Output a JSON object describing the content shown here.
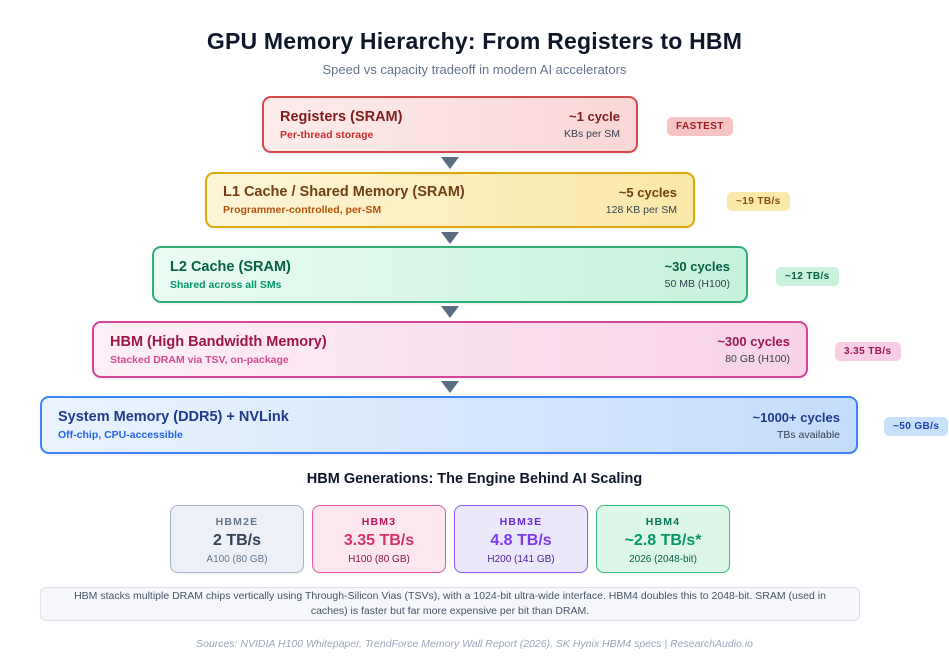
{
  "page": {
    "title": "GPU Memory Hierarchy: From Registers to HBM",
    "subtitle": "Speed vs capacity tradeoff in modern AI accelerators"
  },
  "hierarchy": {
    "levels": [
      {
        "name": "Registers (SRAM)",
        "description": "Per-thread storage",
        "latency": "~1 cycle",
        "capacity": "KBs per SM",
        "badge": "FASTEST",
        "accent": "#d64949"
      },
      {
        "name": "L1 Cache / Shared Memory (SRAM)",
        "description": "Programmer-controlled, per-SM",
        "latency": "~5 cycles",
        "capacity": "128 KB per SM",
        "badge": "~19 TB/s",
        "accent": "#dfa909"
      },
      {
        "name": "L2 Cache (SRAM)",
        "description": "Shared across all SMs",
        "latency": "~30 cycles",
        "capacity": "50 MB (H100)",
        "badge": "~12 TB/s",
        "accent": "#2fae76"
      },
      {
        "name": "HBM (High Bandwidth Memory)",
        "description": "Stacked DRAM via TSV, on-package",
        "latency": "~300 cycles",
        "capacity": "80 GB (H100)",
        "badge": "3.35 TB/s",
        "accent": "#d6439a"
      },
      {
        "name": "System Memory (DDR5) + NVLink",
        "description": "Off-chip, CPU-accessible",
        "latency": "~1000+ cycles",
        "capacity": "TBs available",
        "badge": "~50 GB/s",
        "accent": "#3f83f8"
      }
    ]
  },
  "generations": {
    "heading": "HBM Generations: The Engine Behind AI Scaling",
    "cards": [
      {
        "name": "HBM2E",
        "bandwidth": "2 TB/s",
        "detail": "A100 (80 GB)",
        "accent": "#64748b"
      },
      {
        "name": "HBM3",
        "bandwidth": "3.35 TB/s",
        "detail": "H100 (80 GB)",
        "accent": "#d6336c"
      },
      {
        "name": "HBM3E",
        "bandwidth": "4.8 TB/s",
        "detail": "H200 (141 GB)",
        "accent": "#7c3aed"
      },
      {
        "name": "HBM4",
        "bandwidth": "~2.8 TB/s*",
        "detail": "2026 (2048-bit)",
        "accent": "#059669"
      }
    ]
  },
  "footer": {
    "note": "HBM stacks multiple DRAM chips vertically using Through-Silicon Vias (TSVs), with a 1024-bit ultra-wide interface. HBM4 doubles this to 2048-bit. SRAM (used in caches) is faster but far more expensive per bit than DRAM.",
    "sources": "Sources: NVIDIA H100 Whitepaper, TrendForce Memory Wall Report (2026), SK Hynix HBM4 specs | ResearchAudio.io"
  }
}
